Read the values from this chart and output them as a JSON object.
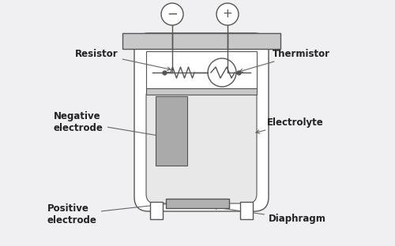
{
  "bg_color": "#f0f0f2",
  "line_color": "#555555",
  "cap_fill": "#c8c8c8",
  "inner_fill": "#e8e8e8",
  "electrode_fill": "#aaaaaa",
  "diaphragm_fill": "#b0b0b0",
  "white": "#ffffff",
  "labels": {
    "resistor": "Resistor",
    "thermistor": "Thermistor",
    "negative": "Negative\nelectrode",
    "positive": "Positive\nelectrode",
    "electrolyte": "Electrolyte",
    "diaphragm": "Diaphragm"
  },
  "font_size": 8.5,
  "lw": 1.0
}
